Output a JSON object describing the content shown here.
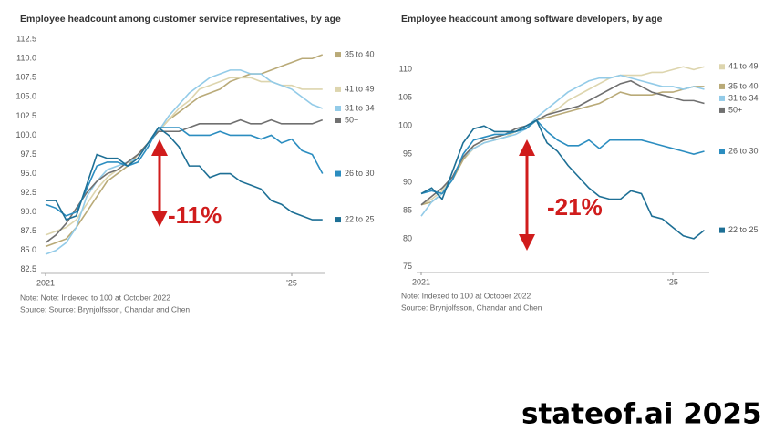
{
  "chart_data": [
    {
      "type": "line",
      "title": "Employee headcount among customer service representatives, by age",
      "annotation": "-11%",
      "note": "Note: Note: Indexed to 100 at October 2022",
      "source": "Source: Source: Brynjolfsson, Chandar and Chen",
      "categories": [
        "2021",
        null,
        null,
        null,
        null,
        null,
        null,
        null,
        null,
        null,
        null,
        null,
        null,
        null,
        null,
        null,
        null,
        null,
        null,
        null,
        null,
        null,
        null,
        null,
        "'25",
        null,
        null,
        null
      ],
      "ylim": [
        82,
        113
      ],
      "yticks": [
        82.5,
        {
          "value": 85,
          "label": "85.0"
        },
        87.5,
        {
          "value": 90,
          "label": "90.0"
        },
        92.5,
        {
          "value": 95,
          "label": "95.0"
        },
        97.5,
        {
          "value": 100,
          "label": "100.0"
        },
        102.5,
        {
          "value": 105,
          "label": "105.0"
        },
        107.5,
        {
          "value": 110,
          "label": "110.0"
        },
        112.5
      ],
      "grid": false,
      "series": [
        {
          "name": "35 to 40",
          "color": "#b9aa78",
          "values": [
            85.5,
            86,
            86.5,
            88,
            90,
            92,
            94,
            95,
            96,
            97.5,
            99,
            100.5,
            102,
            103,
            104,
            105,
            105.5,
            106,
            107,
            107.5,
            108,
            108,
            108.5,
            109,
            109.5,
            110,
            110,
            110.5
          ]
        },
        {
          "name": "41 to 49",
          "color": "#ddd5ae",
          "values": [
            87,
            87.5,
            88,
            89,
            91,
            93,
            94.5,
            95.5,
            96.5,
            97.5,
            99,
            100.5,
            102,
            103.5,
            104.5,
            106,
            106.5,
            107,
            107.5,
            107.5,
            107.5,
            107,
            107,
            106.5,
            106.5,
            106,
            106,
            106
          ]
        },
        {
          "name": "31 to 34",
          "color": "#93cbe8",
          "values": [
            84.5,
            85,
            86,
            88,
            92,
            94,
            95.5,
            96,
            96.5,
            97,
            99,
            100.5,
            102.5,
            104,
            105.5,
            106.5,
            107.5,
            108,
            108.5,
            108.5,
            108,
            108,
            107,
            106.5,
            106,
            105,
            104,
            103.5
          ]
        },
        {
          "name": "50+",
          "color": "#707070",
          "values": [
            86,
            87,
            88.5,
            90.5,
            92.5,
            94,
            95,
            95.5,
            96.5,
            97.5,
            99,
            100.5,
            100.5,
            100.5,
            101,
            101.5,
            101.5,
            101.5,
            101.5,
            102,
            101.5,
            101.5,
            102,
            101.5,
            101.5,
            101.5,
            101.5,
            102
          ]
        },
        {
          "name": "26 to 30",
          "color": "#2b8dc0",
          "values": [
            91,
            90.5,
            89.5,
            90,
            93,
            96,
            96.5,
            96.5,
            96,
            96.5,
            98.5,
            101,
            101,
            101,
            100,
            100,
            100,
            100.5,
            100,
            100,
            100,
            99.5,
            100,
            99,
            99.5,
            98,
            97.5,
            95
          ]
        },
        {
          "name": "22 to 25",
          "color": "#1d6f95",
          "values": [
            91.5,
            91.5,
            89,
            89.5,
            93.5,
            97.5,
            97,
            97,
            96,
            97,
            99,
            101,
            100,
            98.5,
            96,
            96,
            94.5,
            95,
            95,
            94,
            93.5,
            93,
            91.5,
            91,
            90,
            89.5,
            89,
            89
          ]
        }
      ]
    },
    {
      "type": "line",
      "title": "Employee headcount among software developers, by age",
      "annotation": "-21%",
      "note": "Note: Indexed to 100 at October 2022",
      "source": "Source: Brynjolfsson, Chandar and Chen",
      "categories": [
        "2021",
        null,
        null,
        null,
        null,
        null,
        null,
        null,
        null,
        null,
        null,
        null,
        null,
        null,
        null,
        null,
        null,
        null,
        null,
        null,
        null,
        null,
        null,
        null,
        "'25",
        null,
        null,
        null
      ],
      "ylim": [
        74,
        112
      ],
      "yticks": [
        75,
        80,
        85,
        90,
        95,
        100,
        105,
        110
      ],
      "grid": false,
      "series": [
        {
          "name": "41 to 49",
          "color": "#ddd5ae",
          "values": [
            86,
            87,
            88.5,
            91,
            94,
            96,
            97,
            97.5,
            98,
            99,
            99.5,
            101,
            102,
            103,
            104.5,
            105.5,
            106.5,
            107.5,
            108.5,
            109,
            109,
            109,
            109.5,
            109.5,
            110,
            110.5,
            110,
            110.5
          ]
        },
        {
          "name": "35 to 40",
          "color": "#b9aa78",
          "values": [
            86,
            86.5,
            88,
            90.5,
            94,
            96.5,
            97.5,
            98,
            98.5,
            99,
            99.5,
            101,
            101.5,
            102,
            102.5,
            103,
            103.5,
            104,
            105,
            106,
            105.5,
            105.5,
            105.5,
            106,
            106,
            106.5,
            107,
            107
          ]
        },
        {
          "name": "31 to 34",
          "color": "#93cbe8",
          "values": [
            84,
            86.5,
            88,
            91,
            94.5,
            96,
            97,
            97.5,
            98,
            98.5,
            99.5,
            101.5,
            103,
            104.5,
            106,
            107,
            108,
            108.5,
            108.5,
            109,
            108.5,
            108,
            107.5,
            107,
            107,
            106.5,
            107,
            106.5
          ]
        },
        {
          "name": "50+",
          "color": "#707070",
          "values": [
            86,
            87.5,
            89,
            91,
            94.5,
            96.5,
            97.5,
            98,
            98.5,
            99.5,
            100,
            101,
            102,
            102.5,
            103,
            103.5,
            104.5,
            105.5,
            106.5,
            107.5,
            108,
            107,
            106,
            105.5,
            105,
            104.5,
            104.5,
            104
          ]
        },
        {
          "name": "26 to 30",
          "color": "#2b8dc0",
          "values": [
            88,
            88.5,
            88,
            90.5,
            95,
            97.5,
            98,
            98.5,
            98.5,
            99,
            99.5,
            101,
            99,
            97.5,
            96.5,
            96.5,
            97.5,
            96,
            97.5,
            97.5,
            97.5,
            97.5,
            97,
            96.5,
            96,
            95.5,
            95,
            95.5
          ]
        },
        {
          "name": "22 to 25",
          "color": "#1d6f95",
          "values": [
            88,
            89,
            87,
            92,
            97,
            99.5,
            100,
            99,
            99,
            99,
            100,
            101,
            97,
            95.5,
            93,
            91,
            89,
            87.5,
            87,
            87,
            88.5,
            88,
            84,
            83.5,
            82,
            80.5,
            80,
            81.5
          ]
        }
      ]
    }
  ],
  "footer": "stateof.ai 2025"
}
